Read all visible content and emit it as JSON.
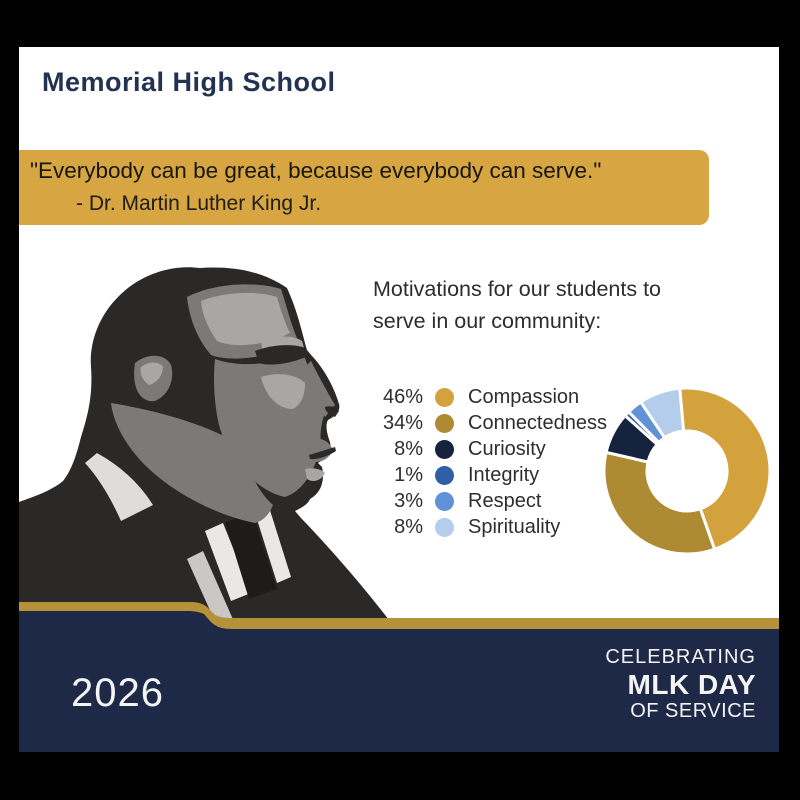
{
  "header": {
    "school_name": "Memorial High School"
  },
  "quote_banner": {
    "quote": "\"Everybody can be great, because everybody can serve.\"",
    "attribution": "- Dr. Martin Luther King Jr.",
    "bg_color": "#D7A643"
  },
  "chart_section": {
    "intro_line1": "Motivations for our students to",
    "intro_line2": "serve in our community:"
  },
  "chart_data": {
    "type": "pie",
    "subtype": "donut",
    "title": "Motivations for our students to serve in our community",
    "legend_position": "left",
    "start_angle_deg": -5,
    "donut_hole_ratio": 0.48,
    "series": [
      {
        "label": "Compassion",
        "value": 46,
        "percent_label": "46%",
        "color": "#D4A23C"
      },
      {
        "label": "Connectedness",
        "value": 34,
        "percent_label": "34%",
        "color": "#AE8A32"
      },
      {
        "label": "Curiosity",
        "value": 8,
        "percent_label": "8%",
        "color": "#16233F"
      },
      {
        "label": "Integrity",
        "value": 1,
        "percent_label": "1%",
        "color": "#2F5FA4"
      },
      {
        "label": "Respect",
        "value": 3,
        "percent_label": "3%",
        "color": "#6191D6"
      },
      {
        "label": "Spirituality",
        "value": 8,
        "percent_label": "8%",
        "color": "#B3CDEA"
      }
    ]
  },
  "portrait": {
    "description": "Posterized grayscale profile portrait of Dr. Martin Luther King Jr."
  },
  "footer": {
    "year": "2026",
    "line1": "CELEBRATING",
    "line2": "MLK DAY",
    "line3": "OF SERVICE",
    "band_color": "#1D2946",
    "band_accent_color": "#B5913A"
  }
}
